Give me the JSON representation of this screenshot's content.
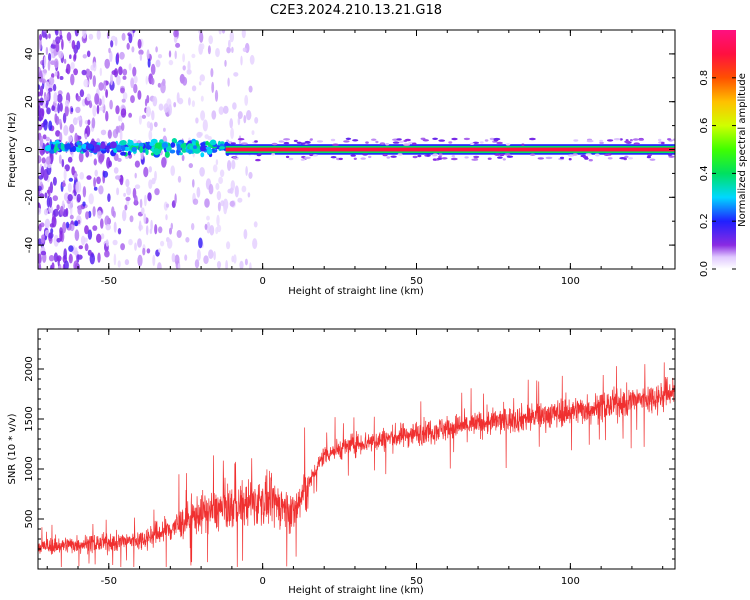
{
  "title": "C2E3.2024.210.13.21.G18",
  "colors": {
    "snr_line": "#f03030",
    "axis": "#000000",
    "background": "#ffffff"
  },
  "chart_data": [
    {
      "type": "heatmap",
      "xlabel": "Height of straight line (km)",
      "ylabel": "Frequency (Hz)",
      "xlim": [
        -73,
        134
      ],
      "ylim": [
        -50,
        50
      ],
      "x_ticks": [
        "-50",
        "0",
        "50",
        "100"
      ],
      "x_tick_values": [
        -50,
        0,
        50,
        100
      ],
      "y_ticks": [
        "-40",
        "-20",
        "0",
        "20",
        "40"
      ],
      "y_tick_values": [
        -40,
        -20,
        0,
        20,
        40
      ],
      "colorbar": {
        "label": "Normalized spectral amplitude",
        "range": [
          0,
          1
        ],
        "ticks": [
          "0.0",
          "0.2",
          "0.4",
          "0.6",
          "0.8"
        ],
        "tick_values": [
          0.0,
          0.2,
          0.4,
          0.6,
          0.8
        ],
        "colormap": "rainbow (white → violet → blue → cyan → green → yellow → orange → red → pink)"
      },
      "features": {
        "noisy_region_x": [
          -73,
          -12
        ],
        "strong_line_x": [
          -12,
          134
        ],
        "strong_line_frequency_hz": 0,
        "line_amplitude": 0.9,
        "noise_amplitude": 0.1
      }
    },
    {
      "type": "line",
      "xlabel": "Height of straight line (km)",
      "ylabel": "SNR (10 * v/v)",
      "xlim": [
        -73,
        134
      ],
      "ylim": [
        0,
        2400
      ],
      "x_ticks": [
        "-50",
        "0",
        "50",
        "100"
      ],
      "x_tick_values": [
        -50,
        0,
        50,
        100
      ],
      "y_ticks": [
        "500",
        "1000",
        "1500",
        "2000"
      ],
      "y_tick_values": [
        500,
        1000,
        1500,
        2000
      ],
      "series": [
        {
          "x": [
            -73,
            -60,
            -50,
            -40,
            -30,
            -20,
            -10,
            0,
            5,
            10,
            15,
            20,
            30,
            40,
            50,
            60,
            70,
            80,
            90,
            100,
            110,
            120,
            130,
            134
          ],
          "y": [
            220,
            250,
            260,
            290,
            400,
            560,
            620,
            680,
            650,
            560,
            850,
            1150,
            1250,
            1300,
            1360,
            1410,
            1450,
            1490,
            1530,
            1580,
            1620,
            1680,
            1730,
            1800
          ]
        }
      ]
    }
  ]
}
